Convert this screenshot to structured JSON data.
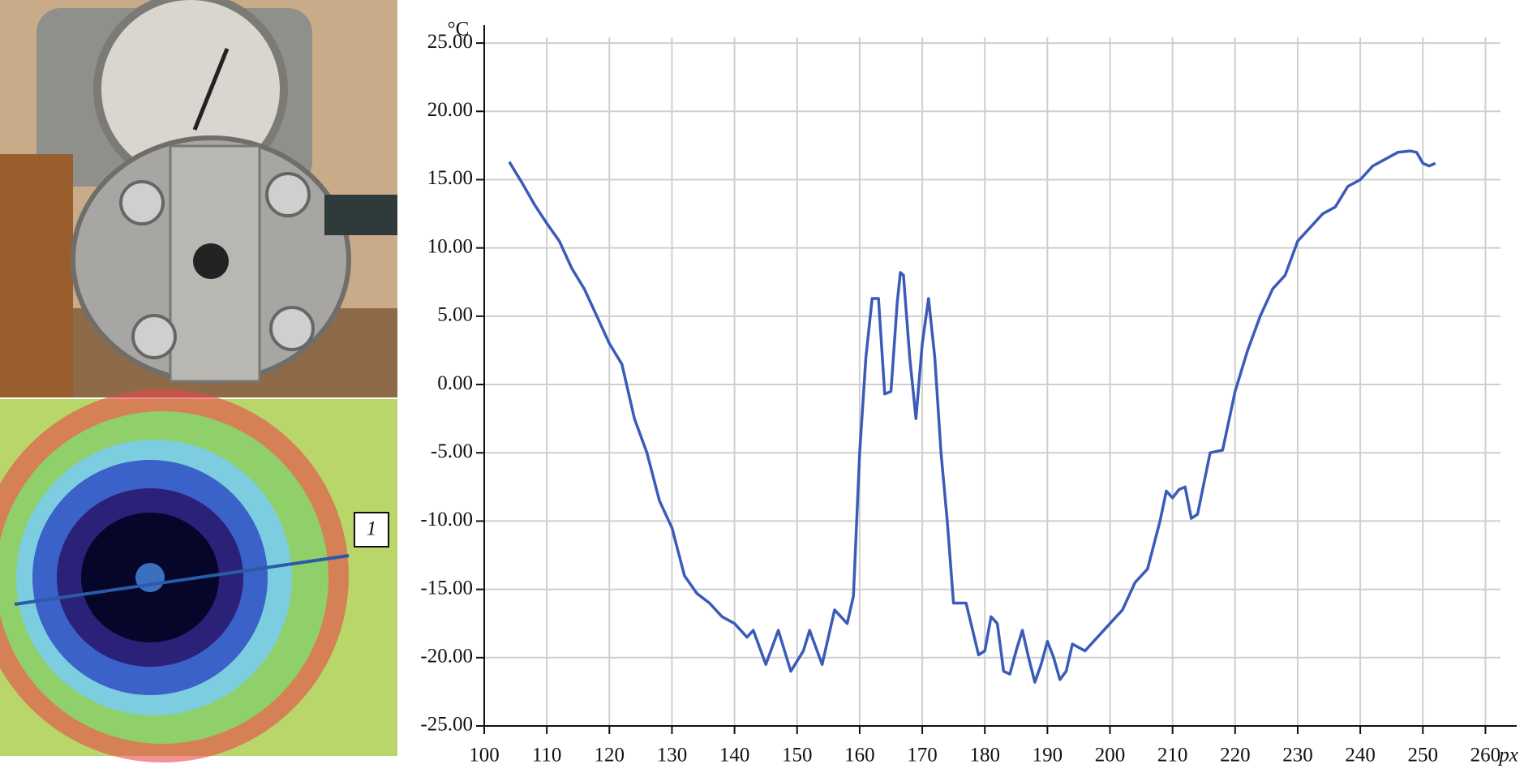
{
  "chart_data": {
    "type": "line",
    "y_label": "°C",
    "x_label": "px",
    "photo_label": "1",
    "color": "#3a5bb8",
    "grid": true,
    "xlim": [
      100,
      265
    ],
    "ylim": [
      -25,
      27.5
    ],
    "xticks": [
      100,
      110,
      120,
      130,
      140,
      150,
      160,
      170,
      180,
      190,
      200,
      210,
      220,
      230,
      240,
      250,
      260
    ],
    "yticks": [
      {
        "value": -25,
        "label": "-25.00"
      },
      {
        "value": -20,
        "label": "-20.00"
      },
      {
        "value": -15,
        "label": "-15.00"
      },
      {
        "value": -10,
        "label": "-10.00"
      },
      {
        "value": -5,
        "label": "-5.00"
      },
      {
        "value": 0,
        "label": "0.00"
      },
      {
        "value": 5,
        "label": "5.00"
      },
      {
        "value": 10,
        "label": "10.00"
      },
      {
        "value": 15,
        "label": "15.00"
      },
      {
        "value": 20,
        "label": "20.00"
      },
      {
        "value": 25,
        "label": "25.00"
      }
    ],
    "x": [
      104,
      106,
      108,
      110,
      112,
      114,
      116,
      118,
      120,
      122,
      124,
      126,
      128,
      130,
      132,
      134,
      136,
      138,
      140,
      142,
      143,
      145,
      147,
      149,
      151,
      152,
      154,
      156,
      158,
      159,
      160,
      161,
      162,
      163,
      164,
      165,
      166,
      166.5,
      167,
      168,
      169,
      170,
      171,
      172,
      173,
      174,
      175,
      177,
      179,
      180,
      181,
      182,
      183,
      184,
      185,
      186,
      187,
      188,
      189,
      190,
      191,
      192,
      193,
      194,
      196,
      198,
      200,
      202,
      204,
      206,
      208,
      209,
      210,
      211,
      212,
      213,
      214,
      216,
      218,
      220,
      222,
      224,
      226,
      228,
      230,
      232,
      234,
      236,
      238,
      240,
      242,
      244,
      246,
      248,
      249,
      250,
      251,
      252
    ],
    "values": [
      16.3,
      14.8,
      13.2,
      11.8,
      10.5,
      8.5,
      7.0,
      5.0,
      3.0,
      1.5,
      -2.5,
      -5.0,
      -8.5,
      -10.5,
      -14.0,
      -15.3,
      -16.0,
      -17.0,
      -17.5,
      -18.5,
      -18.0,
      -20.5,
      -18.0,
      -21.0,
      -19.5,
      -18.0,
      -20.5,
      -16.5,
      -17.5,
      -15.5,
      -5.0,
      2.0,
      6.3,
      6.3,
      -0.7,
      -0.5,
      6.0,
      8.2,
      8.0,
      2.0,
      -2.5,
      3.0,
      6.3,
      2.0,
      -5.0,
      -10.0,
      -16.0,
      -16.0,
      -19.8,
      -19.5,
      -17.0,
      -17.5,
      -21.0,
      -21.2,
      -19.5,
      -18.0,
      -20.0,
      -21.8,
      -20.5,
      -18.8,
      -20.0,
      -21.6,
      -21.0,
      -19.0,
      -19.5,
      -18.5,
      -17.5,
      -16.5,
      -14.5,
      -13.5,
      -10.0,
      -7.8,
      -8.3,
      -7.7,
      -7.5,
      -9.8,
      -9.5,
      -5.0,
      -4.8,
      -0.5,
      2.5,
      5.0,
      7.0,
      8.0,
      10.5,
      11.5,
      12.5,
      13.0,
      14.5,
      15.0,
      16.0,
      16.5,
      17.0,
      17.1,
      17.0,
      16.2,
      16.0,
      16.2
    ]
  }
}
